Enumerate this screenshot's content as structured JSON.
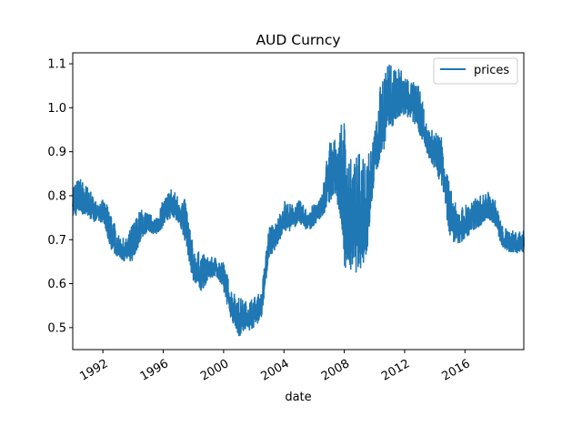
{
  "chart_data": {
    "type": "line",
    "title": "AUD Curncy",
    "xlabel": "date",
    "ylabel": "",
    "xlim": [
      1990.0,
      2019.9
    ],
    "ylim": [
      0.45,
      1.125
    ],
    "x_ticks": [
      1992,
      1996,
      2000,
      2004,
      2008,
      2012,
      2016
    ],
    "x_tick_labels": [
      "1992",
      "1996",
      "2000",
      "2004",
      "2008",
      "2012",
      "2016"
    ],
    "y_ticks": [
      0.5,
      0.6,
      0.7,
      0.8,
      0.9,
      1.0,
      1.1
    ],
    "y_tick_labels": [
      "0.5",
      "0.6",
      "0.7",
      "0.8",
      "0.9",
      "1.0",
      "1.1"
    ],
    "grid": false,
    "legend_position": "top-right",
    "series": [
      {
        "name": "prices",
        "color": "#1f77b4",
        "x": [
          1990.0,
          1990.5,
          1991.0,
          1991.5,
          1992.0,
          1992.5,
          1993.0,
          1993.5,
          1994.0,
          1994.5,
          1995.0,
          1995.5,
          1996.0,
          1996.5,
          1997.0,
          1997.5,
          1998.0,
          1998.5,
          1999.0,
          1999.5,
          2000.0,
          2000.5,
          2001.0,
          2001.5,
          2002.0,
          2002.5,
          2003.0,
          2003.5,
          2004.0,
          2004.5,
          2005.0,
          2005.5,
          2006.0,
          2006.5,
          2007.0,
          2007.5,
          2008.0,
          2008.5,
          2009.0,
          2009.5,
          2010.0,
          2010.5,
          2011.0,
          2011.5,
          2012.0,
          2012.5,
          2013.0,
          2013.5,
          2014.0,
          2014.5,
          2015.0,
          2015.5,
          2016.0,
          2016.5,
          2017.0,
          2017.5,
          2018.0,
          2018.5,
          2019.0,
          2019.5,
          2019.9
        ],
        "high": [
          0.83,
          0.84,
          0.82,
          0.79,
          0.79,
          0.77,
          0.71,
          0.7,
          0.74,
          0.77,
          0.76,
          0.75,
          0.79,
          0.82,
          0.8,
          0.79,
          0.68,
          0.67,
          0.66,
          0.66,
          0.65,
          0.59,
          0.57,
          0.56,
          0.57,
          0.58,
          0.73,
          0.74,
          0.79,
          0.78,
          0.79,
          0.77,
          0.78,
          0.8,
          0.93,
          0.93,
          0.98,
          0.87,
          0.9,
          0.93,
          0.94,
          1.08,
          1.1,
          1.1,
          1.08,
          1.06,
          1.05,
          0.95,
          0.95,
          0.94,
          0.82,
          0.77,
          0.78,
          0.79,
          0.8,
          0.81,
          0.79,
          0.73,
          0.72,
          0.72,
          0.72
        ],
        "low": [
          0.75,
          0.76,
          0.75,
          0.74,
          0.74,
          0.68,
          0.66,
          0.65,
          0.65,
          0.7,
          0.72,
          0.71,
          0.73,
          0.75,
          0.74,
          0.69,
          0.6,
          0.58,
          0.61,
          0.62,
          0.58,
          0.52,
          0.48,
          0.49,
          0.5,
          0.52,
          0.66,
          0.68,
          0.72,
          0.72,
          0.74,
          0.72,
          0.73,
          0.75,
          0.78,
          0.8,
          0.64,
          0.62,
          0.63,
          0.66,
          0.84,
          0.89,
          0.95,
          0.97,
          0.98,
          0.97,
          0.94,
          0.89,
          0.86,
          0.82,
          0.7,
          0.69,
          0.7,
          0.72,
          0.73,
          0.75,
          0.73,
          0.68,
          0.67,
          0.67,
          0.67
        ]
      }
    ]
  }
}
